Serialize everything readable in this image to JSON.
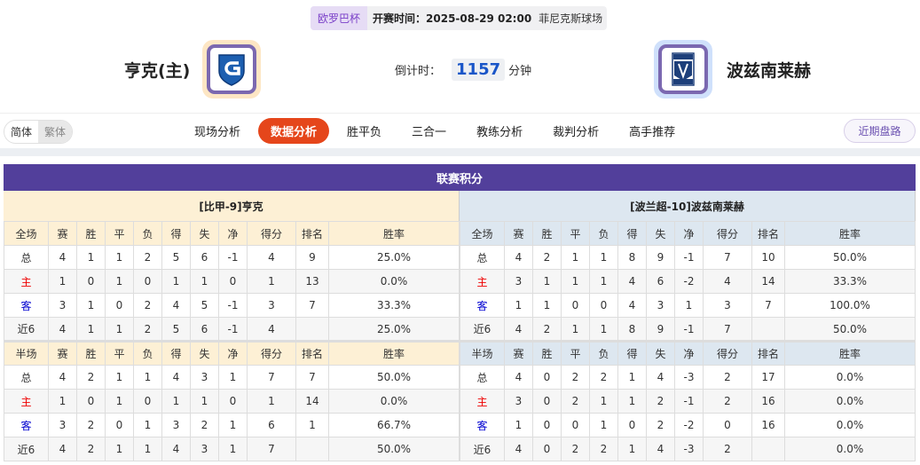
{
  "match": {
    "league": "欧罗巴杯",
    "time_label": "开赛时间：",
    "time": "2025-08-29 02:00",
    "venue": "菲尼克斯球场"
  },
  "home": {
    "name": "亨克(主)",
    "color": "#fde6c4"
  },
  "away": {
    "name": "波兹南莱赫",
    "color": "#cfe0fb"
  },
  "countdown": {
    "label": "倒计时：",
    "value": "1157",
    "unit": "分钟"
  },
  "lang": {
    "simplified": "简体",
    "traditional": "繁体"
  },
  "tabs": [
    "现场分析",
    "数据分析",
    "胜平负",
    "三合一",
    "教练分析",
    "裁判分析",
    "高手推荐"
  ],
  "active_tab": "数据分析",
  "recent_button": "近期盘路",
  "section_title": "联赛积分",
  "colors": {
    "accent": "#e5461b",
    "header": "#523f9b",
    "home_row": "#e00000",
    "away_row": "#0000d0"
  },
  "tables": [
    {
      "team_header": "[比甲-9]亨克",
      "full": {
        "header": [
          "全场",
          "赛",
          "胜",
          "平",
          "负",
          "得",
          "失",
          "净",
          "得分",
          "排名",
          "胜率"
        ],
        "rows": [
          [
            "总",
            "4",
            "1",
            "1",
            "2",
            "5",
            "6",
            "-1",
            "4",
            "9",
            "25.0%"
          ],
          [
            "主",
            "1",
            "0",
            "1",
            "0",
            "1",
            "1",
            "0",
            "1",
            "13",
            "0.0%"
          ],
          [
            "客",
            "3",
            "1",
            "0",
            "2",
            "4",
            "5",
            "-1",
            "3",
            "7",
            "33.3%"
          ],
          [
            "近6",
            "4",
            "1",
            "1",
            "2",
            "5",
            "6",
            "-1",
            "4",
            "",
            "25.0%"
          ]
        ]
      },
      "half": {
        "header": [
          "半场",
          "赛",
          "胜",
          "平",
          "负",
          "得",
          "失",
          "净",
          "得分",
          "排名",
          "胜率"
        ],
        "rows": [
          [
            "总",
            "4",
            "2",
            "1",
            "1",
            "4",
            "3",
            "1",
            "7",
            "7",
            "50.0%"
          ],
          [
            "主",
            "1",
            "0",
            "1",
            "0",
            "1",
            "1",
            "0",
            "1",
            "14",
            "0.0%"
          ],
          [
            "客",
            "3",
            "2",
            "0",
            "1",
            "3",
            "2",
            "1",
            "6",
            "1",
            "66.7%"
          ],
          [
            "近6",
            "4",
            "2",
            "1",
            "1",
            "4",
            "3",
            "1",
            "7",
            "",
            "50.0%"
          ]
        ]
      }
    },
    {
      "team_header": "[波兰超-10]波兹南莱赫",
      "full": {
        "header": [
          "全场",
          "赛",
          "胜",
          "平",
          "负",
          "得",
          "失",
          "净",
          "得分",
          "排名",
          "胜率"
        ],
        "rows": [
          [
            "总",
            "4",
            "2",
            "1",
            "1",
            "8",
            "9",
            "-1",
            "7",
            "10",
            "50.0%"
          ],
          [
            "主",
            "3",
            "1",
            "1",
            "1",
            "4",
            "6",
            "-2",
            "4",
            "14",
            "33.3%"
          ],
          [
            "客",
            "1",
            "1",
            "0",
            "0",
            "4",
            "3",
            "1",
            "3",
            "7",
            "100.0%"
          ],
          [
            "近6",
            "4",
            "2",
            "1",
            "1",
            "8",
            "9",
            "-1",
            "7",
            "",
            "50.0%"
          ]
        ]
      },
      "half": {
        "header": [
          "半场",
          "赛",
          "胜",
          "平",
          "负",
          "得",
          "失",
          "净",
          "得分",
          "排名",
          "胜率"
        ],
        "rows": [
          [
            "总",
            "4",
            "0",
            "2",
            "2",
            "1",
            "4",
            "-3",
            "2",
            "17",
            "0.0%"
          ],
          [
            "主",
            "3",
            "0",
            "2",
            "1",
            "1",
            "2",
            "-1",
            "2",
            "16",
            "0.0%"
          ],
          [
            "客",
            "1",
            "0",
            "0",
            "1",
            "0",
            "2",
            "-2",
            "0",
            "16",
            "0.0%"
          ],
          [
            "近6",
            "4",
            "0",
            "2",
            "2",
            "1",
            "4",
            "-3",
            "2",
            "",
            "0.0%"
          ]
        ]
      }
    }
  ]
}
